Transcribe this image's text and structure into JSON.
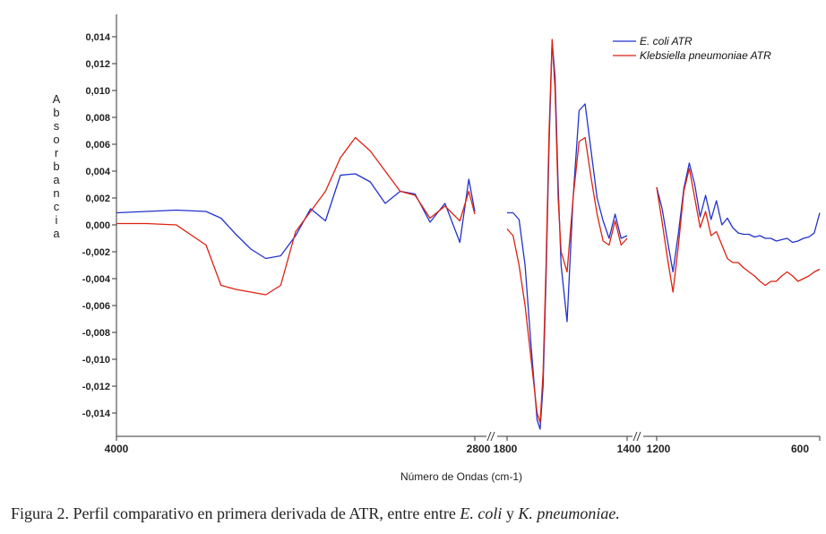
{
  "caption": {
    "prefix": "Figura 2. Perfil comparativo en primera derivada de ATR, entre entre ",
    "species1": "E. coli",
    "connector": " y ",
    "species2": "K. pneumoniae."
  },
  "chart_data": {
    "type": "line",
    "xlabel": "Número de Ondas (cm-1)",
    "ylabel": "Absorbancia",
    "ylim": [
      -0.0155,
      0.0155
    ],
    "y_ticks": [
      "0,014",
      "0,012",
      "0,010",
      "0,008",
      "0,006",
      "0,004",
      "0,002",
      "0,000",
      "-0,002",
      "-0,004",
      "-0,006",
      "-0,008",
      "-0,010",
      "-0,012",
      "-0,014"
    ],
    "y_tick_values": [
      0.014,
      0.012,
      0.01,
      0.008,
      0.006,
      0.004,
      0.002,
      0.0,
      -0.002,
      -0.004,
      -0.006,
      -0.008,
      -0.01,
      -0.012,
      -0.014
    ],
    "x_ticks": [
      {
        "label": "4000",
        "value": 4000
      },
      {
        "label": "2800",
        "value": 2800
      },
      {
        "label": "1800",
        "value": 1800
      },
      {
        "label": "1400",
        "value": 1400
      },
      {
        "label": "1200",
        "value": 1200
      },
      {
        "label": "600",
        "value": 600
      }
    ],
    "x_axis_breaks": [
      "2800–1800",
      "1400–1200"
    ],
    "grid": false,
    "legend_position": "top-right",
    "series": [
      {
        "name": "E. coli ATR",
        "color": "#2233cc",
        "segments": [
          {
            "x": [
              4000,
              3900,
              3800,
              3700,
              3650,
              3600,
              3550,
              3500,
              3450,
              3400,
              3350,
              3300,
              3250,
              3200,
              3150,
              3100,
              3050,
              3000,
              2950,
              2900,
              2850,
              2820,
              2800
            ],
            "y": [
              0.0009,
              0.001,
              0.0011,
              0.001,
              0.0005,
              -0.0007,
              -0.0018,
              -0.0025,
              -0.0023,
              -0.0008,
              0.0012,
              0.0003,
              0.0037,
              0.0038,
              0.0032,
              0.0016,
              0.0025,
              0.0023,
              0.0002,
              0.0016,
              -0.0013,
              0.0034,
              0.001
            ]
          },
          {
            "x": [
              1800,
              1780,
              1760,
              1740,
              1720,
              1700,
              1690,
              1680,
              1670,
              1660,
              1650,
              1640,
              1630,
              1620,
              1600,
              1580,
              1560,
              1540,
              1520,
              1500,
              1480,
              1460,
              1440,
              1420,
              1400
            ],
            "y": [
              0.0009,
              0.0009,
              0.0004,
              -0.003,
              -0.009,
              -0.0145,
              -0.0152,
              -0.012,
              -0.004,
              0.006,
              0.0137,
              0.011,
              0.003,
              -0.003,
              -0.0072,
              0.002,
              0.0085,
              0.009,
              0.0055,
              0.002,
              0.0003,
              -0.001,
              0.0008,
              -0.001,
              -0.0008
            ]
          },
          {
            "x": [
              1200,
              1180,
              1160,
              1140,
              1120,
              1100,
              1080,
              1060,
              1040,
              1020,
              1000,
              980,
              960,
              940,
              920,
              900,
              880,
              860,
              840,
              820,
              800,
              780,
              760,
              740,
              720,
              700,
              680,
              660,
              640,
              620,
              600
            ],
            "y": [
              0.0028,
              0.0012,
              -0.0012,
              -0.0035,
              -0.0006,
              0.0027,
              0.0046,
              0.003,
              0.0006,
              0.0022,
              0.0004,
              0.0018,
              0.0,
              0.0005,
              -0.0002,
              -0.0006,
              -0.0007,
              -0.0007,
              -0.0009,
              -0.0008,
              -0.001,
              -0.001,
              -0.0012,
              -0.0011,
              -0.001,
              -0.0013,
              -0.0012,
              -0.001,
              -0.0009,
              -0.0006,
              0.0009
            ]
          }
        ]
      },
      {
        "name": "Klebsiella pneumoniae ATR",
        "color": "#dd2211",
        "segments": [
          {
            "x": [
              4000,
              3900,
              3800,
              3700,
              3650,
              3600,
              3550,
              3500,
              3450,
              3400,
              3350,
              3300,
              3250,
              3200,
              3150,
              3100,
              3050,
              3000,
              2950,
              2900,
              2850,
              2820,
              2800
            ],
            "y": [
              0.0001,
              0.0001,
              0.0,
              -0.0015,
              -0.0045,
              -0.0048,
              -0.005,
              -0.0052,
              -0.0045,
              -0.0005,
              0.001,
              0.0025,
              0.005,
              0.0065,
              0.0055,
              0.004,
              0.0025,
              0.0022,
              0.0005,
              0.0014,
              0.0003,
              0.0025,
              0.0008
            ]
          },
          {
            "x": [
              1800,
              1780,
              1760,
              1740,
              1720,
              1700,
              1690,
              1680,
              1670,
              1660,
              1650,
              1640,
              1630,
              1620,
              1600,
              1580,
              1560,
              1540,
              1520,
              1500,
              1480,
              1460,
              1440,
              1420,
              1400
            ],
            "y": [
              -0.0003,
              -0.0008,
              -0.003,
              -0.006,
              -0.01,
              -0.014,
              -0.0147,
              -0.011,
              -0.003,
              0.007,
              0.0138,
              0.01,
              0.002,
              -0.002,
              -0.0035,
              0.002,
              0.0062,
              0.0065,
              0.0035,
              0.0008,
              -0.0012,
              -0.0015,
              0.0003,
              -0.0015,
              -0.001
            ]
          },
          {
            "x": [
              1200,
              1180,
              1160,
              1140,
              1120,
              1100,
              1080,
              1060,
              1040,
              1020,
              1000,
              980,
              960,
              940,
              920,
              900,
              880,
              860,
              840,
              820,
              800,
              780,
              760,
              740,
              720,
              700,
              680,
              660,
              640,
              620,
              600
            ],
            "y": [
              0.0028,
              0.0002,
              -0.0025,
              -0.005,
              -0.0015,
              0.0025,
              0.0042,
              0.002,
              -0.0002,
              0.001,
              -0.0008,
              -0.0005,
              -0.0015,
              -0.0025,
              -0.0028,
              -0.0028,
              -0.0032,
              -0.0035,
              -0.0038,
              -0.0042,
              -0.0045,
              -0.0042,
              -0.0042,
              -0.0038,
              -0.0035,
              -0.0038,
              -0.0042,
              -0.004,
              -0.0038,
              -0.0035,
              -0.0033
            ]
          }
        ]
      }
    ]
  }
}
